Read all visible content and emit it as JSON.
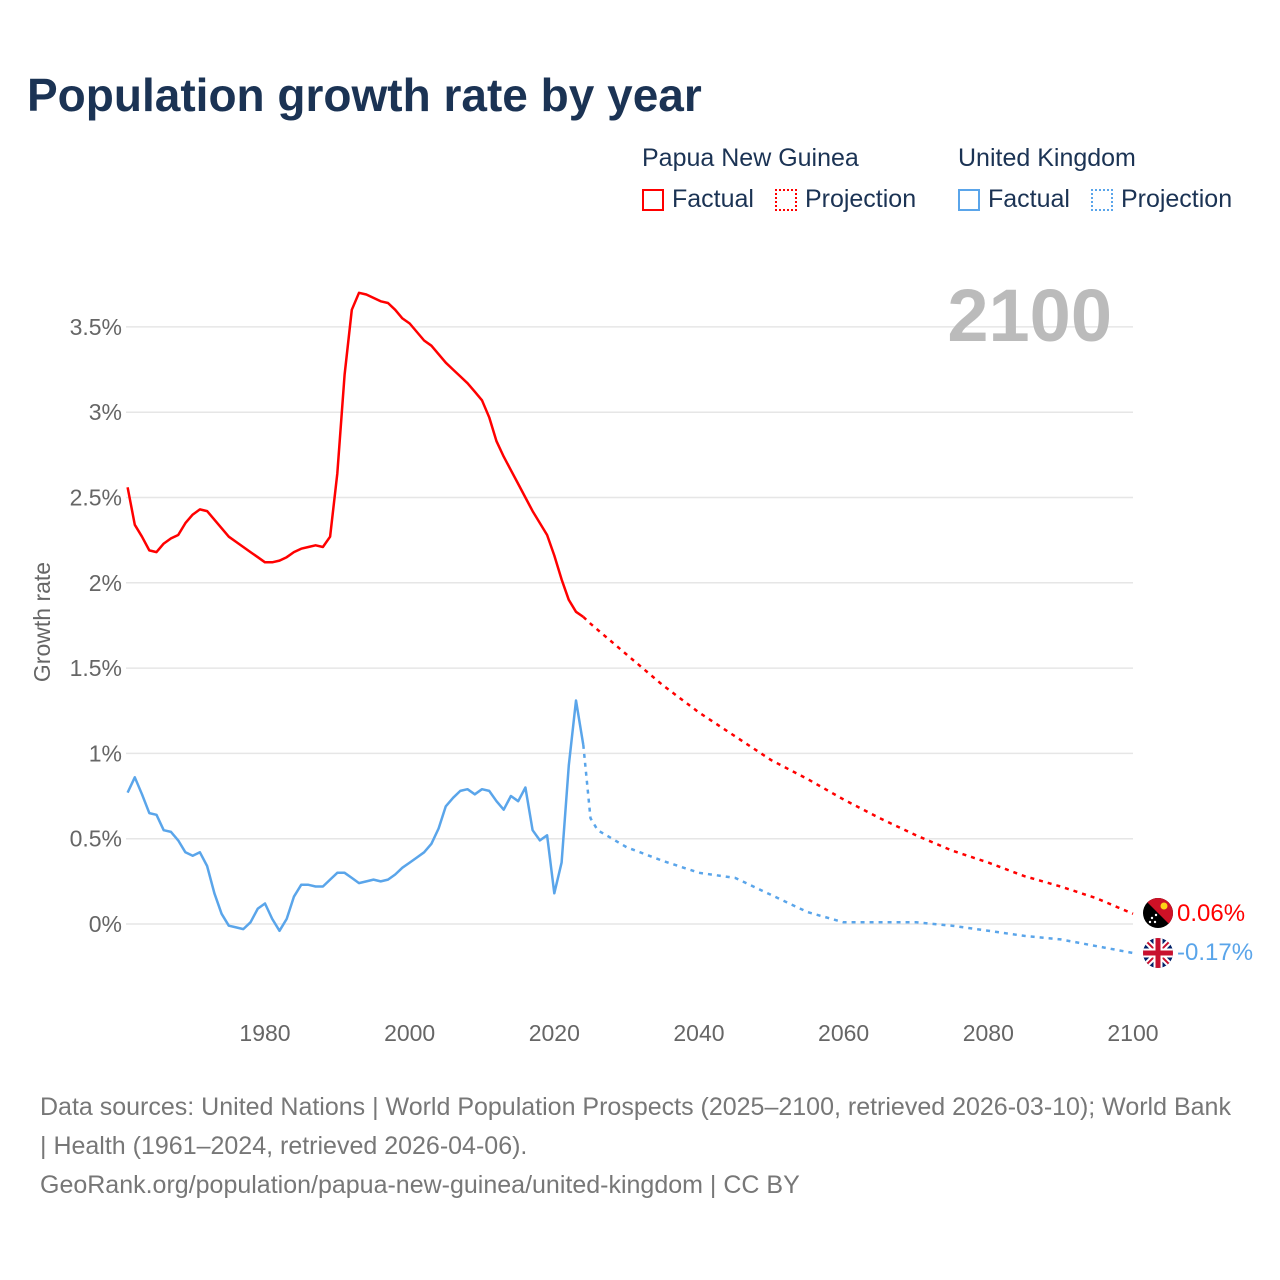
{
  "title": "Population growth rate by year",
  "legend": {
    "groups": [
      {
        "name": "Papua New Guinea",
        "color": "#ff0000",
        "factual": "Factual",
        "projection": "Projection"
      },
      {
        "name": "United Kingdom",
        "color": "#5aa5ea",
        "factual": "Factual",
        "projection": "Projection"
      }
    ]
  },
  "year_watermark": "2100",
  "end_labels": {
    "png": "0.06%",
    "uk": "-0.17%"
  },
  "footer": {
    "sources": "Data sources: United Nations | World Population Prospects (2025–2100, retrieved 2026-03-10); World Bank | Health (1961–2024, retrieved 2026-04-06).",
    "link": "GeoRank.org/population/papua-new-guinea/united-kingdom | CC BY"
  },
  "chart_data": {
    "type": "line",
    "title": "Population growth rate by year",
    "xlabel": "",
    "ylabel": "Growth rate",
    "xlim": [
      1961,
      2100
    ],
    "ylim": [
      -0.35,
      3.9
    ],
    "x_ticks": [
      "1980",
      "2000",
      "2020",
      "2040",
      "2060",
      "2080",
      "2100"
    ],
    "x_tick_values": [
      1980,
      2000,
      2020,
      2040,
      2060,
      2080,
      2100
    ],
    "y_ticks": [
      "0%",
      "0.5%",
      "1%",
      "1.5%",
      "2%",
      "2.5%",
      "3%",
      "3.5%"
    ],
    "y_tick_values": [
      0,
      0.5,
      1,
      1.5,
      2,
      2.5,
      3,
      3.5
    ],
    "grid": true,
    "legend_position": "top-right",
    "series": [
      {
        "name": "Papua New Guinea",
        "kind": "factual",
        "color": "#ff0000",
        "x_start": 1961,
        "values": [
          2.56,
          2.34,
          2.27,
          2.19,
          2.18,
          2.23,
          2.26,
          2.28,
          2.35,
          2.4,
          2.43,
          2.42,
          2.37,
          2.32,
          2.27,
          2.24,
          2.21,
          2.18,
          2.15,
          2.12,
          2.12,
          2.13,
          2.15,
          2.18,
          2.2,
          2.21,
          2.22,
          2.21,
          2.27,
          2.64,
          3.22,
          3.6,
          3.7,
          3.69,
          3.67,
          3.65,
          3.64,
          3.6,
          3.55,
          3.52,
          3.47,
          3.42,
          3.39,
          3.34,
          3.29,
          3.25,
          3.21,
          3.17,
          3.12,
          3.07,
          2.97,
          2.83,
          2.74,
          2.66,
          2.58,
          2.5,
          2.42,
          2.35,
          2.28,
          2.16,
          2.02,
          1.9,
          1.83,
          1.8
        ]
      },
      {
        "name": "Papua New Guinea",
        "kind": "projection",
        "color": "#ff0000",
        "x": [
          2024,
          2025,
          2030,
          2035,
          2040,
          2045,
          2050,
          2055,
          2060,
          2065,
          2070,
          2075,
          2080,
          2085,
          2090,
          2095,
          2100
        ],
        "values": [
          1.8,
          1.76,
          1.58,
          1.4,
          1.24,
          1.1,
          0.96,
          0.85,
          0.73,
          0.62,
          0.52,
          0.43,
          0.36,
          0.28,
          0.22,
          0.15,
          0.06
        ]
      },
      {
        "name": "United Kingdom",
        "kind": "factual",
        "color": "#5aa5ea",
        "x_start": 1961,
        "values": [
          0.77,
          0.86,
          0.76,
          0.65,
          0.64,
          0.55,
          0.54,
          0.49,
          0.42,
          0.4,
          0.42,
          0.34,
          0.18,
          0.06,
          -0.01,
          -0.02,
          -0.03,
          0.01,
          0.09,
          0.12,
          0.03,
          -0.04,
          0.03,
          0.16,
          0.23,
          0.23,
          0.22,
          0.22,
          0.26,
          0.3,
          0.3,
          0.27,
          0.24,
          0.25,
          0.26,
          0.25,
          0.26,
          0.29,
          0.33,
          0.36,
          0.39,
          0.42,
          0.47,
          0.56,
          0.69,
          0.74,
          0.78,
          0.79,
          0.76,
          0.79,
          0.78,
          0.72,
          0.67,
          0.75,
          0.72,
          0.8,
          0.55,
          0.49,
          0.52,
          0.18,
          0.36,
          0.93,
          1.31,
          1.05
        ]
      },
      {
        "name": "United Kingdom",
        "kind": "projection",
        "color": "#5aa5ea",
        "x": [
          2024,
          2025,
          2026,
          2030,
          2035,
          2040,
          2045,
          2050,
          2055,
          2060,
          2065,
          2070,
          2075,
          2080,
          2085,
          2090,
          2095,
          2100
        ],
        "values": [
          1.05,
          0.62,
          0.55,
          0.45,
          0.37,
          0.3,
          0.27,
          0.17,
          0.07,
          0.01,
          0.01,
          0.01,
          -0.01,
          -0.04,
          -0.07,
          -0.09,
          -0.13,
          -0.17
        ]
      }
    ]
  }
}
